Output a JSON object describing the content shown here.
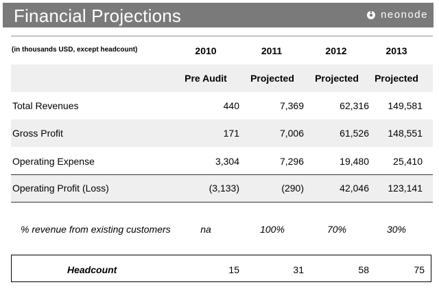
{
  "header": {
    "title": "Financial Projections",
    "logo_text": "neonode",
    "bar_color": "#7a7a7a"
  },
  "table": {
    "units_note": "(in thousands USD, except headcount)",
    "years": [
      "2010",
      "2011",
      "2012",
      "2013"
    ],
    "statuses": [
      "Pre Audit",
      "Projected",
      "Projected",
      "Projected"
    ],
    "rows": [
      {
        "label": "Total Revenues",
        "values": [
          "440",
          "7,369",
          "62,316",
          "149,581"
        ]
      },
      {
        "label": "Gross Profit",
        "values": [
          "171",
          "7,006",
          "61,526",
          "148,551"
        ]
      },
      {
        "label": "Operating Expense",
        "values": [
          "3,304",
          "7,296",
          "19,480",
          "25,410"
        ]
      },
      {
        "label": "Operating Profit (Loss)",
        "values": [
          "(3,133)",
          "(290)",
          "42,046",
          "123,141"
        ]
      }
    ],
    "existing_customers": {
      "label": "% revenue from existing customers",
      "values": [
        "na",
        "100%",
        "70%",
        "30%"
      ]
    },
    "headcount": {
      "label": "Headcount",
      "values": [
        "15",
        "31",
        "58",
        "75"
      ]
    }
  }
}
